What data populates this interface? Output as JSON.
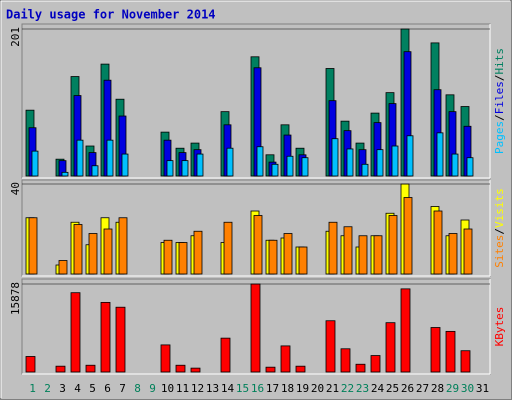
{
  "chart_data": {
    "type": "bar",
    "title": "Daily usage for November 2014",
    "separator": "/",
    "categories": [
      "1",
      "2",
      "3",
      "4",
      "5",
      "6",
      "7",
      "8",
      "9",
      "10",
      "11",
      "12",
      "13",
      "14",
      "15",
      "16",
      "17",
      "18",
      "19",
      "20",
      "21",
      "22",
      "23",
      "24",
      "25",
      "26",
      "27",
      "28",
      "29",
      "30",
      "31"
    ],
    "category_colors": [
      "#00805a",
      "#00805a",
      "#000000",
      "#000000",
      "#000000",
      "#000000",
      "#000000",
      "#00805a",
      "#00805a",
      "#000000",
      "#000000",
      "#000000",
      "#000000",
      "#000000",
      "#00805a",
      "#00805a",
      "#000000",
      "#000000",
      "#000000",
      "#000000",
      "#000000",
      "#00805a",
      "#00805a",
      "#000000",
      "#000000",
      "#000000",
      "#000000",
      "#000000",
      "#00805a",
      "#00805a",
      "#000000"
    ],
    "panels": [
      {
        "ylim": [
          0,
          201
        ],
        "yticks": [
          201
        ],
        "series": [
          {
            "name": "Hits",
            "color": "#008060",
            "values": [
              90,
              0,
              23,
              136,
              41,
              153,
              105,
              0,
              0,
              60,
              38,
              45,
              0,
              88,
              0,
              163,
              29,
              70,
              38,
              0,
              147,
              75,
              45,
              86,
              114,
              201,
              0,
              182,
              111,
              95,
              0
            ]
          },
          {
            "name": "Files",
            "color": "#0000e0",
            "values": [
              66,
              0,
              21,
              110,
              32,
              131,
              82,
              0,
              0,
              49,
              32,
              36,
              0,
              70,
              0,
              148,
              19,
              56,
              29,
              0,
              103,
              62,
              36,
              73,
              99,
              170,
              0,
              118,
              88,
              68,
              0
            ]
          },
          {
            "name": "Pages",
            "color": "#00c0ff",
            "values": [
              34,
              0,
              5,
              49,
              14,
              49,
              30,
              0,
              0,
              21,
              21,
              30,
              0,
              38,
              0,
              40,
              16,
              27,
              25,
              0,
              51,
              37,
              16,
              36,
              41,
              55,
              0,
              59,
              30,
              25,
              0
            ]
          }
        ]
      },
      {
        "ylim": [
          0,
          40
        ],
        "yticks": [
          40
        ],
        "series": [
          {
            "name": "Visits",
            "color": "#ffff00",
            "values": [
              25,
              0,
              4,
              23,
              13,
              25,
              23,
              0,
              0,
              14,
              14,
              17,
              0,
              14,
              0,
              28,
              15,
              16,
              12,
              0,
              19,
              17,
              12,
              17,
              27,
              40,
              0,
              30,
              17,
              24,
              0
            ]
          },
          {
            "name": "Sites",
            "color": "#ff8000",
            "values": [
              25,
              0,
              6,
              22,
              18,
              20,
              25,
              0,
              0,
              15,
              14,
              19,
              0,
              23,
              0,
              26,
              15,
              18,
              12,
              0,
              23,
              21,
              17,
              17,
              26,
              34,
              0,
              28,
              18,
              20,
              0
            ]
          }
        ]
      },
      {
        "ylim": [
          0,
          15878
        ],
        "yticks": [
          15878
        ],
        "series": [
          {
            "name": "KBytes",
            "color": "#ff0000",
            "values": [
              2800,
              0,
              1050,
              14310,
              1220,
              12560,
              11690,
              0,
              0,
              4890,
              1220,
              700,
              0,
              6110,
              0,
              15878,
              870,
              4710,
              1050,
              0,
              9250,
              4190,
              1400,
              2970,
              8900,
              15000,
              0,
              8030,
              7330,
              3840,
              0
            ]
          }
        ]
      }
    ]
  }
}
